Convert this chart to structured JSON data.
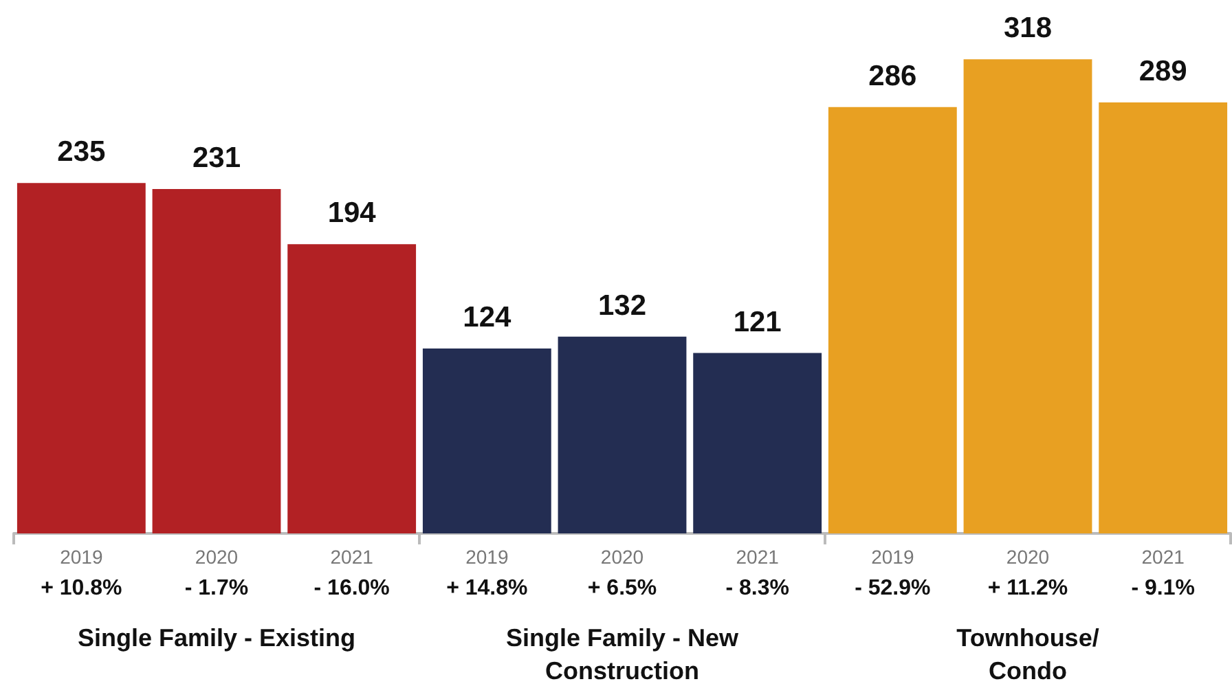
{
  "chart_data": {
    "type": "bar",
    "categories": [
      "2019",
      "2020",
      "2021",
      "2019",
      "2020",
      "2021",
      "2019",
      "2020",
      "2021"
    ],
    "values": [
      235,
      231,
      194,
      124,
      132,
      121,
      286,
      318,
      289
    ],
    "colors": [
      "#b22124",
      "#b22124",
      "#b22124",
      "#232d52",
      "#232d52",
      "#232d52",
      "#e8a022",
      "#e8a022",
      "#e8a022"
    ],
    "data_labels": true,
    "annotations": [
      "+ 10.8%",
      "- 1.7%",
      "- 16.0%",
      "+ 14.8%",
      "+ 6.5%",
      "- 8.3%",
      "- 52.9%",
      "+ 11.2%",
      "- 9.1%",
      "Single Family - Existing",
      "Single Family - New\nConstruction",
      "Townhouse/\nCondo"
    ]
  }
}
